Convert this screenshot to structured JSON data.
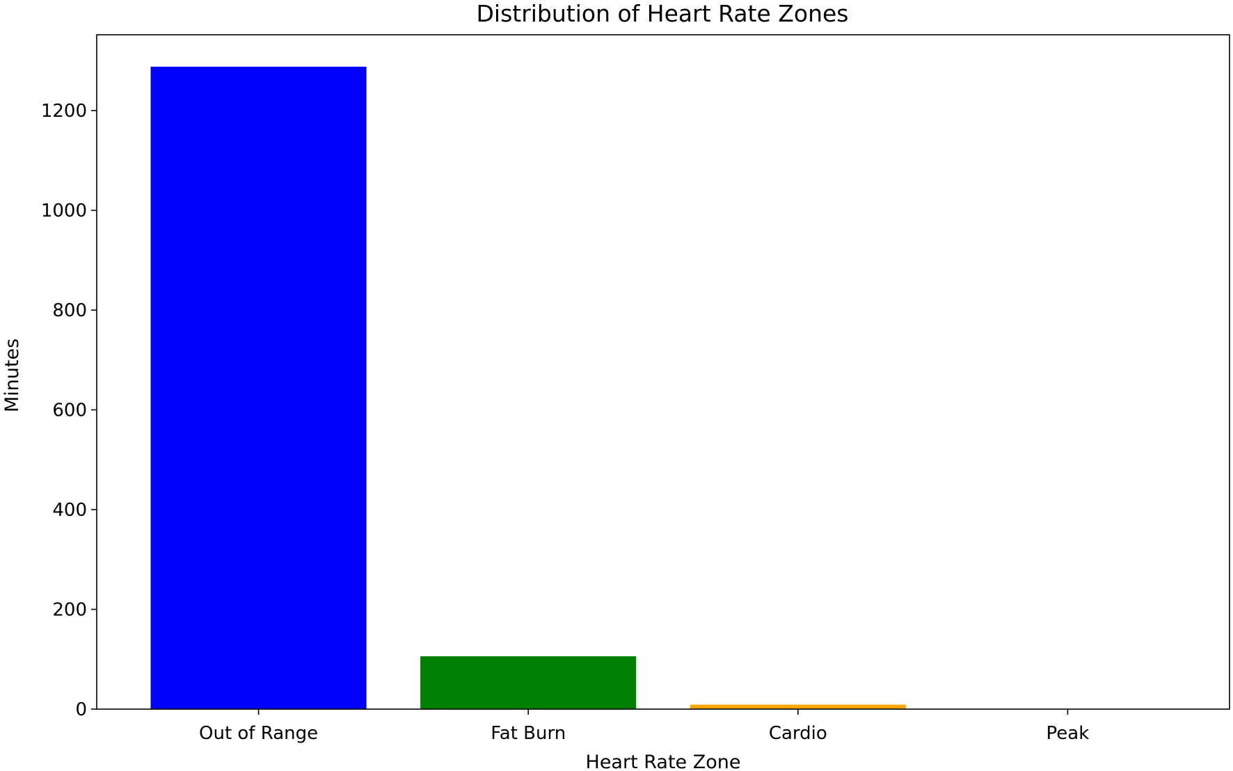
{
  "chart_data": {
    "type": "bar",
    "title": "Distribution of Heart Rate Zones",
    "xlabel": "Heart Rate Zone",
    "ylabel": "Minutes",
    "categories": [
      "Out of Range",
      "Fat Burn",
      "Cardio",
      "Peak"
    ],
    "values": [
      1288,
      106,
      9,
      0
    ],
    "colors": [
      "#0000ff",
      "#008000",
      "#ffa500",
      "#ff0000"
    ],
    "ylim": [
      0,
      1352
    ],
    "yticks": [
      0,
      200,
      400,
      600,
      800,
      1000,
      1200
    ],
    "grid": false,
    "legend": "none"
  }
}
